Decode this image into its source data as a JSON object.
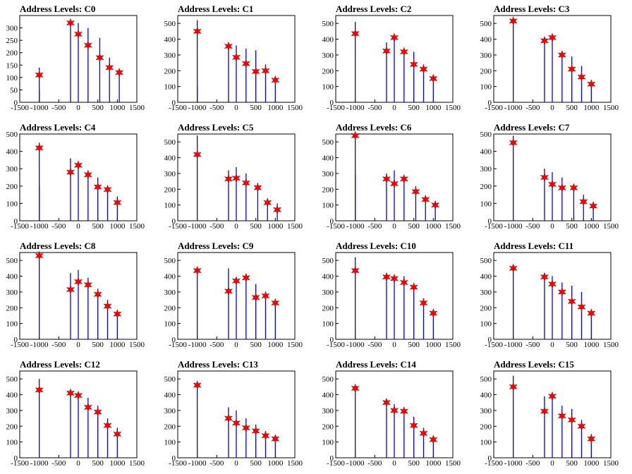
{
  "figure": {
    "title_prefix": "Address Levels: "
  },
  "colors": {
    "bar": "#0000ee",
    "marker": "#ff0000",
    "marker_edge": "#aa0000",
    "axis": "#000000"
  },
  "chart_data": [
    {
      "type": "bar",
      "title": "Address Levels: C0",
      "xlim": [
        -1500,
        1500
      ],
      "ylim": [
        0,
        350
      ],
      "xticks": [
        -1500,
        -1000,
        -500,
        0,
        500,
        1000,
        1500
      ],
      "yticks": [
        0,
        50,
        100,
        150,
        200,
        250,
        300
      ],
      "bars": [
        [
          -1000,
          140
        ],
        [
          -1000,
          50
        ],
        [
          -200,
          320
        ],
        [
          0,
          320
        ],
        [
          250,
          300
        ],
        [
          550,
          260
        ],
        [
          800,
          180
        ],
        [
          1050,
          120
        ]
      ],
      "markers": [
        [
          -1000,
          110
        ],
        [
          -200,
          320
        ],
        [
          0,
          275
        ],
        [
          250,
          230
        ],
        [
          550,
          180
        ],
        [
          800,
          140
        ],
        [
          1050,
          120
        ]
      ]
    },
    {
      "type": "bar",
      "title": "Address Levels: C1",
      "xlim": [
        -1500,
        1500
      ],
      "ylim": [
        0,
        550
      ],
      "xticks": [
        -1500,
        -1000,
        -500,
        0,
        500,
        1000,
        1500
      ],
      "yticks": [
        0,
        100,
        200,
        300,
        400,
        500
      ],
      "bars": [
        [
          -1000,
          520
        ],
        [
          -1000,
          100
        ],
        [
          -200,
          370
        ],
        [
          0,
          360
        ],
        [
          250,
          340
        ],
        [
          500,
          330
        ],
        [
          750,
          240
        ],
        [
          1000,
          150
        ]
      ],
      "markers": [
        [
          -1000,
          450
        ],
        [
          -200,
          355
        ],
        [
          0,
          285
        ],
        [
          250,
          245
        ],
        [
          500,
          195
        ],
        [
          750,
          200
        ],
        [
          1000,
          140
        ]
      ]
    },
    {
      "type": "bar",
      "title": "Address Levels: C2",
      "xlim": [
        -1500,
        1500
      ],
      "ylim": [
        0,
        550
      ],
      "xticks": [
        -1500,
        -1000,
        -500,
        0,
        500,
        1000,
        1500
      ],
      "yticks": [
        0,
        100,
        200,
        300,
        400,
        500
      ],
      "bars": [
        [
          -1000,
          510
        ],
        [
          -200,
          380
        ],
        [
          0,
          400
        ],
        [
          250,
          340
        ],
        [
          500,
          320
        ],
        [
          750,
          240
        ],
        [
          1000,
          150
        ]
      ],
      "markers": [
        [
          -1000,
          435
        ],
        [
          -200,
          325
        ],
        [
          0,
          410
        ],
        [
          250,
          320
        ],
        [
          500,
          240
        ],
        [
          750,
          210
        ],
        [
          1000,
          150
        ]
      ]
    },
    {
      "type": "bar",
      "title": "Address Levels: C3",
      "xlim": [
        -1500,
        1500
      ],
      "ylim": [
        0,
        550
      ],
      "xticks": [
        -1500,
        -1000,
        -500,
        0,
        500,
        1000,
        1500
      ],
      "yticks": [
        0,
        100,
        200,
        300,
        400,
        500
      ],
      "bars": [
        [
          -1000,
          530
        ],
        [
          -200,
          400
        ],
        [
          0,
          420
        ],
        [
          250,
          310
        ],
        [
          500,
          290
        ],
        [
          750,
          230
        ],
        [
          1000,
          140
        ]
      ],
      "markers": [
        [
          -1000,
          515
        ],
        [
          -200,
          390
        ],
        [
          0,
          410
        ],
        [
          250,
          300
        ],
        [
          500,
          210
        ],
        [
          750,
          160
        ],
        [
          1000,
          115
        ]
      ]
    },
    {
      "type": "bar",
      "title": "Address Levels: C4",
      "xlim": [
        -1500,
        1500
      ],
      "ylim": [
        0,
        500
      ],
      "xticks": [
        -1500,
        -1000,
        -500,
        0,
        500,
        1000,
        1500
      ],
      "yticks": [
        0,
        100,
        200,
        300,
        400,
        500
      ],
      "bars": [
        [
          -1000,
          450
        ],
        [
          -1000,
          200
        ],
        [
          -200,
          360
        ],
        [
          0,
          310
        ],
        [
          250,
          290
        ],
        [
          500,
          250
        ],
        [
          750,
          200
        ],
        [
          1000,
          140
        ]
      ],
      "markers": [
        [
          -1000,
          420
        ],
        [
          -200,
          280
        ],
        [
          0,
          320
        ],
        [
          250,
          265
        ],
        [
          500,
          195
        ],
        [
          750,
          180
        ],
        [
          1000,
          105
        ]
      ]
    },
    {
      "type": "bar",
      "title": "Address Levels: C5",
      "xlim": [
        -1500,
        1500
      ],
      "ylim": [
        0,
        550
      ],
      "xticks": [
        -1500,
        -1000,
        -500,
        0,
        500,
        1000,
        1500
      ],
      "yticks": [
        0,
        100,
        200,
        300,
        400,
        500
      ],
      "bars": [
        [
          -1000,
          540
        ],
        [
          -200,
          320
        ],
        [
          0,
          340
        ],
        [
          250,
          300
        ],
        [
          550,
          240
        ],
        [
          800,
          140
        ],
        [
          1050,
          110
        ]
      ],
      "markers": [
        [
          -1000,
          420
        ],
        [
          -200,
          265
        ],
        [
          0,
          270
        ],
        [
          250,
          240
        ],
        [
          550,
          210
        ],
        [
          800,
          115
        ],
        [
          1050,
          70
        ]
      ]
    },
    {
      "type": "bar",
      "title": "Address Levels: C6",
      "xlim": [
        -1500,
        1500
      ],
      "ylim": [
        0,
        550
      ],
      "xticks": [
        -1500,
        -1000,
        -500,
        0,
        500,
        1000,
        1500
      ],
      "yticks": [
        0,
        100,
        200,
        300,
        400,
        500
      ],
      "bars": [
        [
          -1000,
          560
        ],
        [
          -1000,
          290
        ],
        [
          -200,
          300
        ],
        [
          0,
          320
        ],
        [
          250,
          280
        ],
        [
          550,
          220
        ],
        [
          800,
          160
        ],
        [
          1050,
          110
        ]
      ],
      "markers": [
        [
          -1000,
          540
        ],
        [
          -200,
          265
        ],
        [
          0,
          235
        ],
        [
          250,
          265
        ],
        [
          550,
          185
        ],
        [
          800,
          135
        ],
        [
          1050,
          100
        ]
      ]
    },
    {
      "type": "bar",
      "title": "Address Levels: C7",
      "xlim": [
        -1500,
        1500
      ],
      "ylim": [
        0,
        500
      ],
      "xticks": [
        -1500,
        -1000,
        -500,
        0,
        500,
        1000,
        1500
      ],
      "yticks": [
        0,
        100,
        200,
        300,
        400,
        500
      ],
      "bars": [
        [
          -1000,
          490
        ],
        [
          -200,
          300
        ],
        [
          0,
          280
        ],
        [
          250,
          250
        ],
        [
          550,
          210
        ],
        [
          800,
          150
        ],
        [
          1050,
          110
        ]
      ],
      "markers": [
        [
          -1000,
          450
        ],
        [
          -200,
          250
        ],
        [
          0,
          210
        ],
        [
          250,
          190
        ],
        [
          550,
          190
        ],
        [
          800,
          110
        ],
        [
          1050,
          85
        ]
      ]
    },
    {
      "type": "bar",
      "title": "Address Levels: C8",
      "xlim": [
        -1500,
        1500
      ],
      "ylim": [
        0,
        550
      ],
      "xticks": [
        -1500,
        -1000,
        -500,
        0,
        500,
        1000,
        1500
      ],
      "yticks": [
        0,
        100,
        200,
        300,
        400,
        500
      ],
      "bars": [
        [
          -1000,
          530
        ],
        [
          -200,
          420
        ],
        [
          0,
          440
        ],
        [
          250,
          390
        ],
        [
          500,
          320
        ],
        [
          750,
          250
        ],
        [
          1000,
          160
        ]
      ],
      "markers": [
        [
          -1000,
          530
        ],
        [
          -200,
          315
        ],
        [
          0,
          365
        ],
        [
          250,
          345
        ],
        [
          500,
          285
        ],
        [
          750,
          210
        ],
        [
          1000,
          160
        ]
      ]
    },
    {
      "type": "bar",
      "title": "Address Levels: C9",
      "xlim": [
        -1500,
        1500
      ],
      "ylim": [
        0,
        550
      ],
      "xticks": [
        -1500,
        -1000,
        -500,
        0,
        500,
        1000,
        1500
      ],
      "yticks": [
        0,
        100,
        200,
        300,
        400,
        500
      ],
      "bars": [
        [
          -1000,
          440
        ],
        [
          -200,
          450
        ],
        [
          0,
          380
        ],
        [
          250,
          400
        ],
        [
          500,
          350
        ],
        [
          750,
          290
        ],
        [
          1000,
          230
        ]
      ],
      "markers": [
        [
          -1000,
          435
        ],
        [
          -200,
          305
        ],
        [
          0,
          370
        ],
        [
          250,
          390
        ],
        [
          500,
          265
        ],
        [
          750,
          275
        ],
        [
          1000,
          230
        ]
      ]
    },
    {
      "type": "bar",
      "title": "Address Levels: C10",
      "xlim": [
        -1500,
        1500
      ],
      "ylim": [
        0,
        550
      ],
      "xticks": [
        -1500,
        -1000,
        -500,
        0,
        500,
        1000,
        1500
      ],
      "yticks": [
        0,
        100,
        200,
        300,
        400,
        500
      ],
      "bars": [
        [
          -1000,
          520
        ],
        [
          -200,
          410
        ],
        [
          0,
          400
        ],
        [
          250,
          400
        ],
        [
          500,
          340
        ],
        [
          750,
          260
        ],
        [
          1000,
          190
        ]
      ],
      "markers": [
        [
          -1000,
          435
        ],
        [
          -200,
          395
        ],
        [
          0,
          385
        ],
        [
          250,
          360
        ],
        [
          500,
          330
        ],
        [
          750,
          230
        ],
        [
          1000,
          165
        ]
      ]
    },
    {
      "type": "bar",
      "title": "Address Levels: C11",
      "xlim": [
        -1500,
        1500
      ],
      "ylim": [
        0,
        550
      ],
      "xticks": [
        -1500,
        -1000,
        -500,
        0,
        500,
        1000,
        1500
      ],
      "yticks": [
        0,
        100,
        200,
        300,
        400,
        500
      ],
      "bars": [
        [
          -1000,
          460
        ],
        [
          -200,
          420
        ],
        [
          0,
          400
        ],
        [
          250,
          360
        ],
        [
          500,
          340
        ],
        [
          750,
          300
        ],
        [
          1000,
          170
        ]
      ],
      "markers": [
        [
          -1000,
          450
        ],
        [
          -200,
          395
        ],
        [
          0,
          350
        ],
        [
          250,
          300
        ],
        [
          500,
          240
        ],
        [
          750,
          205
        ],
        [
          1000,
          165
        ]
      ]
    },
    {
      "type": "bar",
      "title": "Address Levels: C12",
      "xlim": [
        -1500,
        1500
      ],
      "ylim": [
        0,
        550
      ],
      "xticks": [
        -1500,
        -1000,
        -500,
        0,
        500,
        1000,
        1500
      ],
      "yticks": [
        0,
        100,
        200,
        300,
        400,
        500
      ],
      "bars": [
        [
          -1000,
          500
        ],
        [
          -200,
          420
        ],
        [
          0,
          400
        ],
        [
          250,
          380
        ],
        [
          500,
          330
        ],
        [
          750,
          250
        ],
        [
          1000,
          190
        ]
      ],
      "markers": [
        [
          -1000,
          430
        ],
        [
          -200,
          410
        ],
        [
          0,
          395
        ],
        [
          250,
          320
        ],
        [
          500,
          290
        ],
        [
          750,
          205
        ],
        [
          1000,
          150
        ]
      ]
    },
    {
      "type": "bar",
      "title": "Address Levels: C13",
      "xlim": [
        -1500,
        1500
      ],
      "ylim": [
        0,
        550
      ],
      "xticks": [
        -1500,
        -1000,
        -500,
        0,
        500,
        1000,
        1500
      ],
      "yticks": [
        0,
        100,
        200,
        300,
        400,
        500
      ],
      "bars": [
        [
          -1000,
          470
        ],
        [
          -200,
          320
        ],
        [
          0,
          300
        ],
        [
          250,
          250
        ],
        [
          500,
          210
        ],
        [
          750,
          170
        ],
        [
          1000,
          130
        ]
      ],
      "markers": [
        [
          -1000,
          460
        ],
        [
          -200,
          250
        ],
        [
          0,
          220
        ],
        [
          250,
          190
        ],
        [
          500,
          170
        ],
        [
          750,
          140
        ],
        [
          1000,
          120
        ]
      ]
    },
    {
      "type": "bar",
      "title": "Address Levels: C14",
      "xlim": [
        -1500,
        1500
      ],
      "ylim": [
        0,
        550
      ],
      "xticks": [
        -1500,
        -1000,
        -500,
        0,
        500,
        1000,
        1500
      ],
      "yticks": [
        0,
        100,
        200,
        300,
        400,
        500
      ],
      "bars": [
        [
          -1000,
          460
        ],
        [
          -200,
          360
        ],
        [
          0,
          340
        ],
        [
          250,
          310
        ],
        [
          500,
          260
        ],
        [
          750,
          190
        ],
        [
          1000,
          130
        ]
      ],
      "markers": [
        [
          -1000,
          440
        ],
        [
          -200,
          350
        ],
        [
          0,
          300
        ],
        [
          250,
          295
        ],
        [
          500,
          205
        ],
        [
          750,
          155
        ],
        [
          1000,
          115
        ]
      ]
    },
    {
      "type": "bar",
      "title": "Address Levels: C15",
      "xlim": [
        -1500,
        1500
      ],
      "ylim": [
        0,
        550
      ],
      "xticks": [
        -1500,
        -1000,
        -500,
        0,
        500,
        1000,
        1500
      ],
      "yticks": [
        0,
        100,
        200,
        300,
        400,
        500
      ],
      "bars": [
        [
          -1000,
          520
        ],
        [
          -200,
          390
        ],
        [
          0,
          400
        ],
        [
          250,
          330
        ],
        [
          500,
          310
        ],
        [
          750,
          240
        ],
        [
          1000,
          150
        ]
      ],
      "markers": [
        [
          -1000,
          450
        ],
        [
          -200,
          295
        ],
        [
          0,
          390
        ],
        [
          250,
          265
        ],
        [
          500,
          240
        ],
        [
          750,
          200
        ],
        [
          1000,
          120
        ]
      ]
    }
  ]
}
